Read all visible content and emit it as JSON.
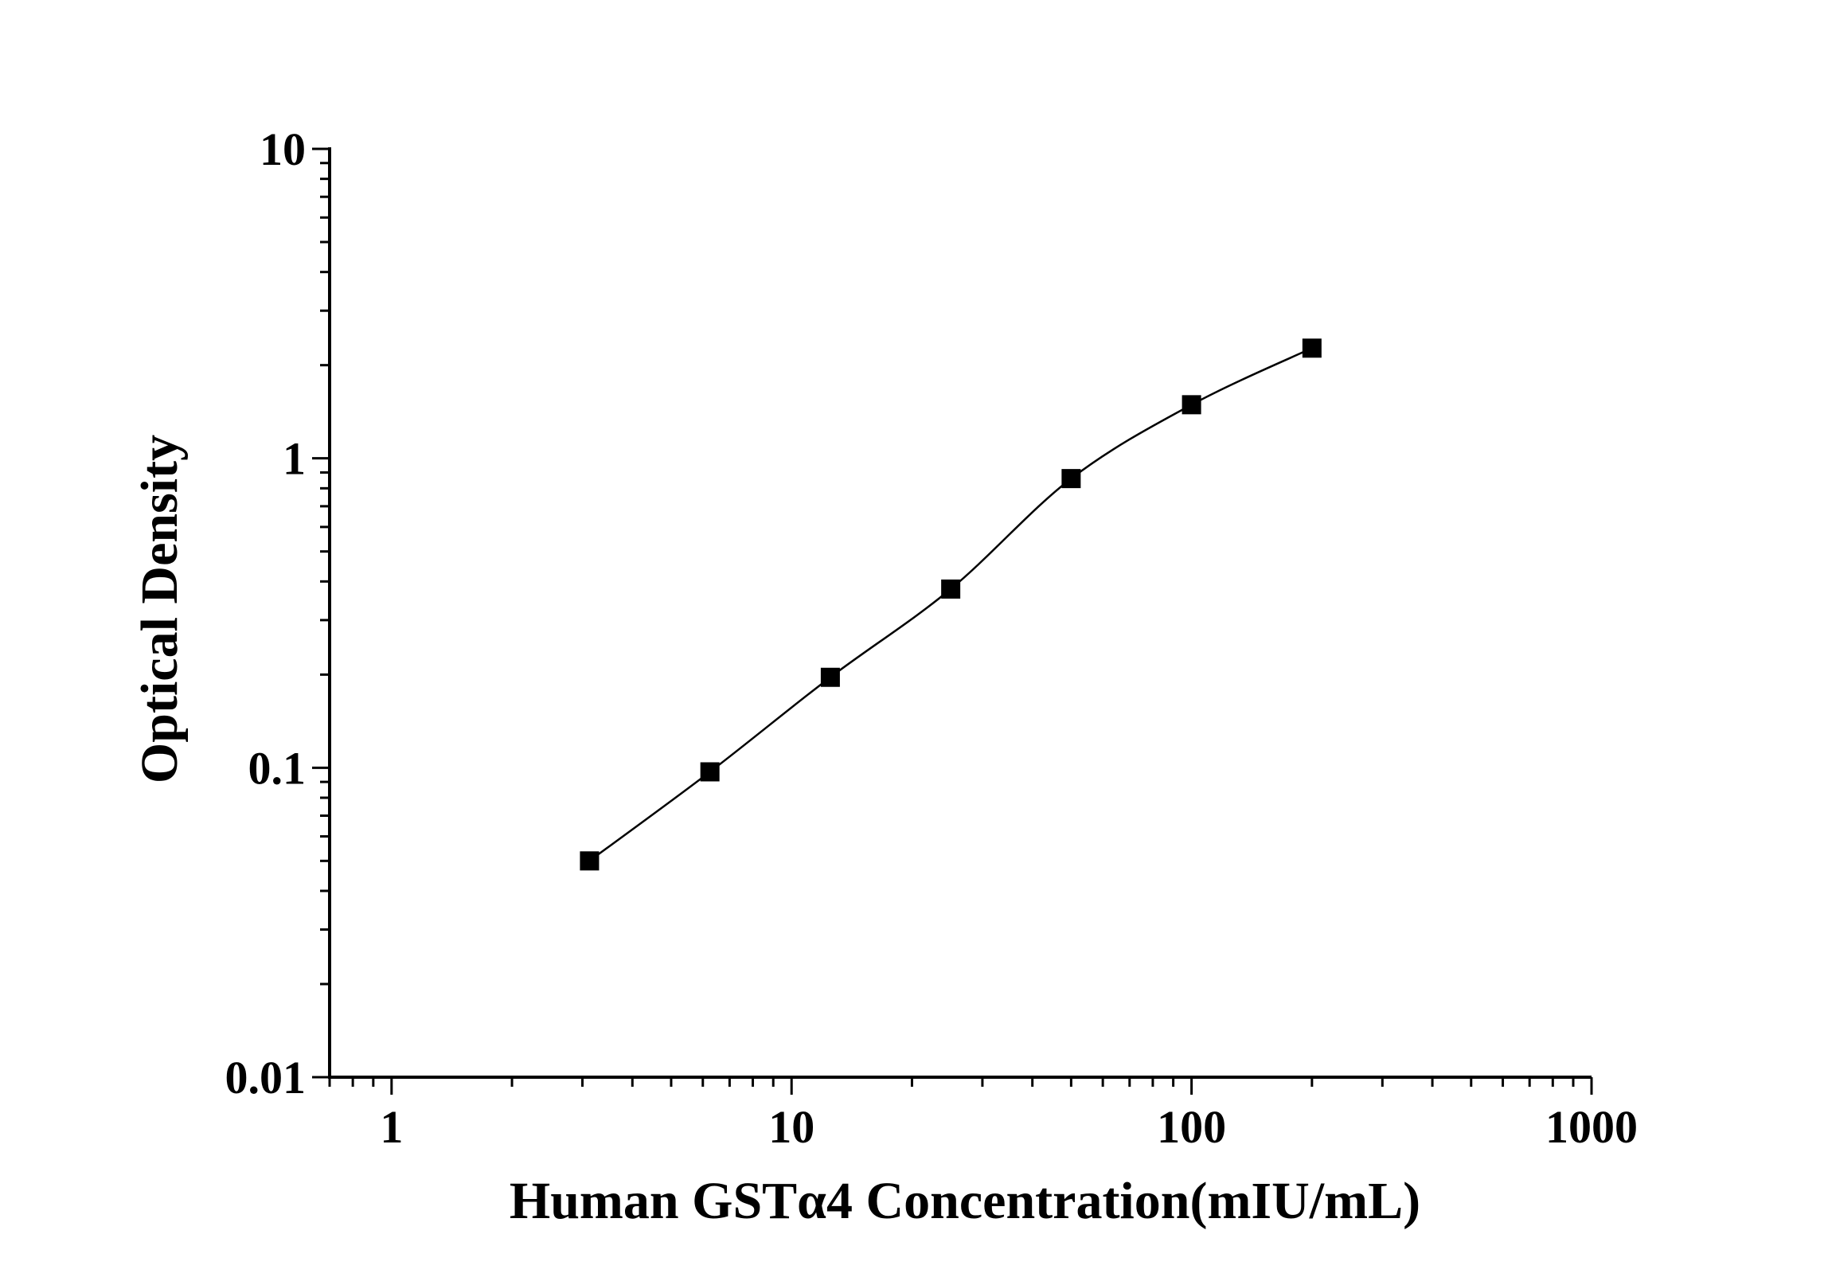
{
  "chart_data": {
    "type": "scatter",
    "title": "",
    "xlabel": "Human GSTα4 Concentration(mIU/mL)",
    "ylabel": "Optical Density",
    "x_scale": "log",
    "y_scale": "log",
    "xlim": [
      0.7,
      1000
    ],
    "ylim": [
      0.01,
      10
    ],
    "x_ticks": [
      1,
      10,
      100,
      1000
    ],
    "x_tick_labels": [
      "1",
      "10",
      "100",
      "1000"
    ],
    "y_ticks": [
      0.01,
      0.1,
      1,
      10
    ],
    "y_tick_labels": [
      "0.01",
      "0.1",
      "1",
      "10"
    ],
    "grid": false,
    "legend": "none",
    "marker_color": "#000000",
    "line_color": "#000000",
    "series": [
      {
        "x": [
          3.125,
          6.25,
          12.5,
          25,
          50,
          100,
          200
        ],
        "y": [
          0.05,
          0.097,
          0.196,
          0.378,
          0.86,
          1.49,
          2.27
        ]
      }
    ]
  }
}
